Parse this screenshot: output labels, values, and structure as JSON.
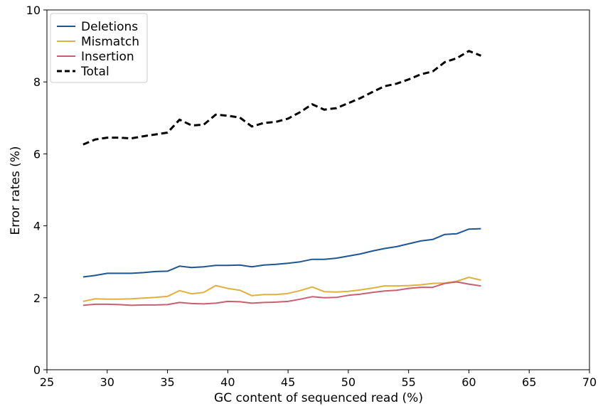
{
  "chart_data": {
    "type": "line",
    "xlabel": "GC content of sequenced read (%)",
    "ylabel": "Error rates (%)",
    "xlim": [
      25,
      70
    ],
    "ylim": [
      0,
      10
    ],
    "xticks": [
      25,
      30,
      35,
      40,
      45,
      50,
      55,
      60,
      65,
      70
    ],
    "yticks": [
      0,
      2,
      4,
      6,
      8,
      10
    ],
    "grid": false,
    "legend_position": "top-left",
    "x": [
      28,
      29,
      30,
      31,
      32,
      33,
      34,
      35,
      36,
      37,
      38,
      39,
      40,
      41,
      42,
      43,
      44,
      45,
      46,
      47,
      48,
      49,
      50,
      51,
      52,
      53,
      54,
      55,
      56,
      57,
      58,
      59,
      60,
      61
    ],
    "series": [
      {
        "name": "Deletions",
        "color": "#1f5591",
        "style": "solid",
        "values": [
          2.58,
          2.62,
          2.68,
          2.68,
          2.68,
          2.7,
          2.73,
          2.74,
          2.88,
          2.84,
          2.86,
          2.9,
          2.9,
          2.91,
          2.86,
          2.91,
          2.93,
          2.96,
          3.0,
          3.07,
          3.07,
          3.1,
          3.16,
          3.22,
          3.3,
          3.37,
          3.42,
          3.5,
          3.58,
          3.62,
          3.76,
          3.78,
          3.91,
          3.92
        ]
      },
      {
        "name": "Mismatch",
        "color": "#e0b040",
        "style": "solid",
        "values": [
          1.9,
          1.97,
          1.96,
          1.96,
          1.97,
          1.99,
          2.01,
          2.04,
          2.2,
          2.11,
          2.15,
          2.34,
          2.26,
          2.21,
          2.06,
          2.09,
          2.09,
          2.12,
          2.2,
          2.3,
          2.17,
          2.16,
          2.18,
          2.22,
          2.27,
          2.33,
          2.33,
          2.34,
          2.36,
          2.4,
          2.41,
          2.46,
          2.57,
          2.49
        ]
      },
      {
        "name": "Insertion",
        "color": "#c86070",
        "style": "solid",
        "values": [
          1.79,
          1.82,
          1.82,
          1.81,
          1.79,
          1.8,
          1.8,
          1.81,
          1.87,
          1.84,
          1.83,
          1.85,
          1.9,
          1.89,
          1.85,
          1.87,
          1.88,
          1.9,
          1.96,
          2.03,
          2.0,
          2.01,
          2.07,
          2.1,
          2.15,
          2.19,
          2.21,
          2.26,
          2.29,
          2.29,
          2.4,
          2.44,
          2.38,
          2.33
        ]
      },
      {
        "name": "Total",
        "color": "#000000",
        "style": "dashed",
        "values": [
          6.26,
          6.4,
          6.45,
          6.45,
          6.43,
          6.49,
          6.54,
          6.59,
          6.95,
          6.79,
          6.81,
          7.09,
          7.06,
          7.01,
          6.76,
          6.86,
          6.89,
          6.98,
          7.16,
          7.38,
          7.23,
          7.27,
          7.41,
          7.55,
          7.72,
          7.88,
          7.95,
          8.07,
          8.21,
          8.29,
          8.55,
          8.66,
          8.86,
          8.73
        ]
      }
    ]
  }
}
